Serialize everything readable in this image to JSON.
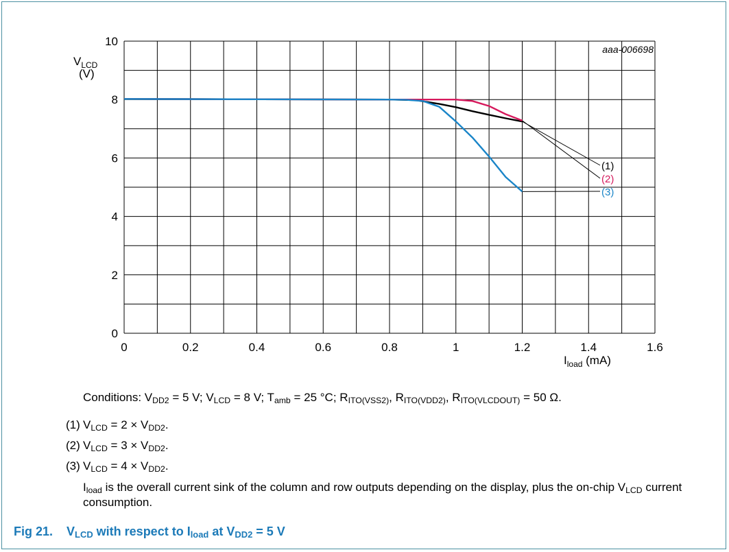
{
  "figure_id": "aaa-006698",
  "colors": {
    "frame": "#4a8fa0",
    "caption": "#1c7ab8",
    "grid": "#000000"
  },
  "chart_data": {
    "type": "line",
    "xlabel": {
      "main": "I",
      "sub": "load",
      "unit": " (mA)"
    },
    "ylabel": {
      "main": "V",
      "sub": "LCD",
      "unit": "(V)"
    },
    "xlim": [
      0,
      1.6
    ],
    "ylim": [
      0,
      10
    ],
    "x_ticks": [
      "0",
      "0.2",
      "0.4",
      "0.6",
      "0.8",
      "1",
      "1.2",
      "1.4",
      "1.6"
    ],
    "y_ticks": [
      "0",
      "2",
      "4",
      "6",
      "8",
      "10"
    ],
    "grid": true,
    "series": [
      {
        "name": "(1)",
        "color": "#000000",
        "points": [
          [
            0,
            8.02
          ],
          [
            0.4,
            8.01
          ],
          [
            0.8,
            8.0
          ],
          [
            0.88,
            7.98
          ],
          [
            0.95,
            7.85
          ],
          [
            1.0,
            7.74
          ],
          [
            1.05,
            7.6
          ],
          [
            1.1,
            7.48
          ],
          [
            1.15,
            7.36
          ],
          [
            1.2,
            7.25
          ]
        ]
      },
      {
        "name": "(2)",
        "color": "#d6195c",
        "points": [
          [
            0,
            8.02
          ],
          [
            0.4,
            8.01
          ],
          [
            0.8,
            8.0
          ],
          [
            0.9,
            8.0
          ],
          [
            0.95,
            8.0
          ],
          [
            1.0,
            8.0
          ],
          [
            1.05,
            7.95
          ],
          [
            1.1,
            7.78
          ],
          [
            1.15,
            7.5
          ],
          [
            1.2,
            7.28
          ]
        ]
      },
      {
        "name": "(3)",
        "color": "#1a85c8",
        "points": [
          [
            0,
            8.02
          ],
          [
            0.4,
            8.01
          ],
          [
            0.8,
            8.0
          ],
          [
            0.85,
            7.99
          ],
          [
            0.9,
            7.95
          ],
          [
            0.95,
            7.75
          ],
          [
            1.0,
            7.25
          ],
          [
            1.05,
            6.7
          ],
          [
            1.1,
            6.05
          ],
          [
            1.15,
            5.35
          ],
          [
            1.2,
            4.85
          ]
        ]
      }
    ]
  },
  "conditions": {
    "prefix": "Conditions: V",
    "vdd2_sub": "DD2",
    "vdd2_val": " = 5 V; V",
    "vlcd_sub": "LCD",
    "vlcd_val": " = 8 V; T",
    "tamb_sub": "amb",
    "tamb_val": " = 25 °C; R",
    "r1_sub": "ITO(VSS2)",
    "r2_pre": ", R",
    "r2_sub": "ITO(VDD2)",
    "r3_pre": ", R",
    "r3_sub": "ITO(VLCDOUT)",
    "r3_val": " = 50 Ω."
  },
  "notes": [
    {
      "num": "(1)",
      "pre": "V",
      "sub1": "LCD",
      "mid": " = 2 × V",
      "sub2": "DD2",
      "end": "."
    },
    {
      "num": "(2)",
      "pre": "V",
      "sub1": "LCD",
      "mid": " = 3 × V",
      "sub2": "DD2",
      "end": "."
    },
    {
      "num": "(3)",
      "pre": "V",
      "sub1": "LCD",
      "mid": " = 4 × V",
      "sub2": "DD2",
      "end": "."
    }
  ],
  "description": {
    "pre": "I",
    "sub1": "load",
    "mid": " is the overall current sink of the column and row outputs depending on the display, plus the on-chip V",
    "sub2": "LCD",
    "end": " current consumption."
  },
  "caption": {
    "fig": "Fig 21.",
    "pre": "V",
    "sub1": "LCD",
    "mid": " with respect to I",
    "sub2": "load",
    "mid2": " at V",
    "sub3": "DD2",
    "end": " = 5 V"
  }
}
